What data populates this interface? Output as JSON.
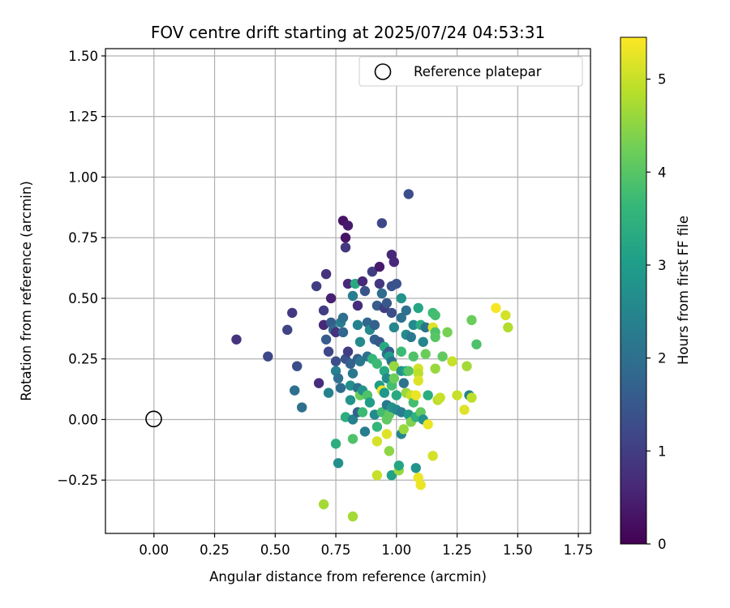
{
  "chart_data": {
    "type": "scatter",
    "title": "FOV centre drift starting at 2025/07/24 04:53:31",
    "xlabel": "Angular distance from reference (arcmin)",
    "ylabel": "Rotation from reference (arcmin)",
    "xlim": [
      -0.2,
      1.8
    ],
    "ylim": [
      -0.47,
      1.53
    ],
    "xticks": [
      "0.00",
      "0.25",
      "0.50",
      "0.75",
      "1.00",
      "1.25",
      "1.50",
      "1.75"
    ],
    "xtick_values": [
      0,
      0.25,
      0.5,
      0.75,
      1.0,
      1.25,
      1.5,
      1.75
    ],
    "yticks": [
      "−0.25",
      "0.00",
      "0.25",
      "0.50",
      "0.75",
      "1.00",
      "1.25",
      "1.50"
    ],
    "ytick_values": [
      -0.25,
      0,
      0.25,
      0.5,
      0.75,
      1.0,
      1.25,
      1.5
    ],
    "grid": true,
    "legend": {
      "position": "top-right",
      "label": "Reference platepar"
    },
    "reference_point": {
      "x": 0.0,
      "y": 0.0,
      "marker": "open-circle"
    },
    "colorbar": {
      "label": "Hours from first FF file",
      "colormap": "viridis",
      "range": [
        0,
        5.45
      ],
      "ticks": [
        "0",
        "1",
        "2",
        "3",
        "4",
        "5"
      ],
      "tick_values": [
        0,
        1,
        2,
        3,
        4,
        5
      ]
    },
    "colors": {
      "viridis": [
        "#440154",
        "#482878",
        "#3e4989",
        "#31688e",
        "#26828e",
        "#1f9e89",
        "#35b779",
        "#6ece58",
        "#b5de2b",
        "#fde725"
      ]
    },
    "points": [
      {
        "x": 0.34,
        "y": 0.33,
        "h": 0.8
      },
      {
        "x": 0.47,
        "y": 0.26,
        "h": 1.2
      },
      {
        "x": 0.55,
        "y": 0.37,
        "h": 1.1
      },
      {
        "x": 0.57,
        "y": 0.44,
        "h": 0.9
      },
      {
        "x": 0.59,
        "y": 0.22,
        "h": 1.3
      },
      {
        "x": 0.58,
        "y": 0.12,
        "h": 2.0
      },
      {
        "x": 0.61,
        "y": 0.05,
        "h": 2.0
      },
      {
        "x": 0.67,
        "y": 0.55,
        "h": 1.0
      },
      {
        "x": 0.68,
        "y": 0.15,
        "h": 0.7
      },
      {
        "x": 0.7,
        "y": 0.45,
        "h": 1.0
      },
      {
        "x": 0.71,
        "y": 0.6,
        "h": 0.8
      },
      {
        "x": 0.7,
        "y": 0.39,
        "h": 0.6
      },
      {
        "x": 0.71,
        "y": 0.33,
        "h": 1.6
      },
      {
        "x": 0.72,
        "y": 0.28,
        "h": 1.2
      },
      {
        "x": 0.73,
        "y": 0.5,
        "h": 0.5
      },
      {
        "x": 0.72,
        "y": 0.11,
        "h": 2.4
      },
      {
        "x": 0.73,
        "y": 0.4,
        "h": 1.6
      },
      {
        "x": 0.74,
        "y": 0.37,
        "h": 1.9
      },
      {
        "x": 0.75,
        "y": 0.36,
        "h": 0.8
      },
      {
        "x": 0.75,
        "y": 0.24,
        "h": 1.3
      },
      {
        "x": 0.75,
        "y": -0.1,
        "h": 3.4
      },
      {
        "x": 0.75,
        "y": 0.2,
        "h": 2.4
      },
      {
        "x": 0.76,
        "y": 0.17,
        "h": 2.0
      },
      {
        "x": 0.76,
        "y": -0.18,
        "h": 2.7
      },
      {
        "x": 0.77,
        "y": 0.4,
        "h": 2.3
      },
      {
        "x": 0.77,
        "y": 0.13,
        "h": 1.9
      },
      {
        "x": 0.78,
        "y": 0.82,
        "h": 0.3
      },
      {
        "x": 0.78,
        "y": 0.36,
        "h": 1.8
      },
      {
        "x": 0.78,
        "y": 0.42,
        "h": 2.0
      },
      {
        "x": 0.79,
        "y": 0.25,
        "h": 1.4
      },
      {
        "x": 0.79,
        "y": 0.01,
        "h": 3.4
      },
      {
        "x": 0.79,
        "y": 0.75,
        "h": 0.3
      },
      {
        "x": 0.79,
        "y": 0.71,
        "h": 0.9
      },
      {
        "x": 0.8,
        "y": 0.8,
        "h": 0.4
      },
      {
        "x": 0.8,
        "y": 0.56,
        "h": 0.6
      },
      {
        "x": 0.8,
        "y": 0.28,
        "h": 1.0
      },
      {
        "x": 0.81,
        "y": 0.08,
        "h": 2.8
      },
      {
        "x": 0.81,
        "y": 0.14,
        "h": 2.7
      },
      {
        "x": 0.81,
        "y": 0.23,
        "h": 1.7
      },
      {
        "x": 0.82,
        "y": 0.19,
        "h": 2.2
      },
      {
        "x": 0.82,
        "y": -0.08,
        "h": 3.9
      },
      {
        "x": 0.82,
        "y": 0.51,
        "h": 2.3
      },
      {
        "x": 0.82,
        "y": 0.0,
        "h": 2.4
      },
      {
        "x": 0.82,
        "y": -0.4,
        "h": 4.7
      },
      {
        "x": 0.83,
        "y": 0.56,
        "h": 3.3
      },
      {
        "x": 0.84,
        "y": 0.13,
        "h": 2.1
      },
      {
        "x": 0.84,
        "y": 0.47,
        "h": 0.7
      },
      {
        "x": 0.84,
        "y": 0.25,
        "h": 1.6
      },
      {
        "x": 0.84,
        "y": 0.03,
        "h": 1.7
      },
      {
        "x": 0.84,
        "y": 0.39,
        "h": 2.4
      },
      {
        "x": 0.85,
        "y": 0.32,
        "h": 2.6
      },
      {
        "x": 0.85,
        "y": 0.24,
        "h": 2.2
      },
      {
        "x": 0.85,
        "y": 0.1,
        "h": 4.2
      },
      {
        "x": 0.86,
        "y": 0.12,
        "h": 2.8
      },
      {
        "x": 0.86,
        "y": 0.03,
        "h": 3.7
      },
      {
        "x": 0.86,
        "y": 0.57,
        "h": 0.6
      },
      {
        "x": 0.87,
        "y": 0.53,
        "h": 1.4
      },
      {
        "x": 0.87,
        "y": -0.05,
        "h": 2.3
      },
      {
        "x": 0.88,
        "y": 0.4,
        "h": 1.8
      },
      {
        "x": 0.88,
        "y": 0.26,
        "h": 2.0
      },
      {
        "x": 0.88,
        "y": 0.1,
        "h": 3.9
      },
      {
        "x": 0.89,
        "y": 0.37,
        "h": 2.6
      },
      {
        "x": 0.89,
        "y": 0.07,
        "h": 3.0
      },
      {
        "x": 0.9,
        "y": 0.61,
        "h": 1.0
      },
      {
        "x": 0.9,
        "y": 0.25,
        "h": 3.6
      },
      {
        "x": 0.91,
        "y": 0.33,
        "h": 1.7
      },
      {
        "x": 0.91,
        "y": 0.39,
        "h": 1.7
      },
      {
        "x": 0.91,
        "y": 0.02,
        "h": 2.6
      },
      {
        "x": 0.92,
        "y": 0.47,
        "h": 1.6
      },
      {
        "x": 0.92,
        "y": 0.23,
        "h": 3.7
      },
      {
        "x": 0.92,
        "y": -0.09,
        "h": 5.1
      },
      {
        "x": 0.92,
        "y": -0.03,
        "h": 3.6
      },
      {
        "x": 0.92,
        "y": -0.23,
        "h": 5.0
      },
      {
        "x": 0.93,
        "y": 0.63,
        "h": 0.4
      },
      {
        "x": 0.93,
        "y": 0.32,
        "h": 1.5
      },
      {
        "x": 0.93,
        "y": 0.14,
        "h": 3.0
      },
      {
        "x": 0.93,
        "y": 0.56,
        "h": 0.9
      },
      {
        "x": 0.94,
        "y": 0.81,
        "h": 1.2
      },
      {
        "x": 0.94,
        "y": 0.52,
        "h": 1.9
      },
      {
        "x": 0.94,
        "y": 0.03,
        "h": 3.8
      },
      {
        "x": 0.94,
        "y": 0.12,
        "h": 5.3
      },
      {
        "x": 0.95,
        "y": 0.46,
        "h": 1.0
      },
      {
        "x": 0.95,
        "y": 0.3,
        "h": 3.3
      },
      {
        "x": 0.95,
        "y": 0.2,
        "h": 3.3
      },
      {
        "x": 0.95,
        "y": 0.11,
        "h": 2.9
      },
      {
        "x": 0.96,
        "y": 0.0,
        "h": 4.1
      },
      {
        "x": 0.96,
        "y": 0.48,
        "h": 1.5
      },
      {
        "x": 0.96,
        "y": 0.17,
        "h": 2.6
      },
      {
        "x": 0.96,
        "y": 0.27,
        "h": 2.1
      },
      {
        "x": 0.96,
        "y": 0.06,
        "h": 2.2
      },
      {
        "x": 0.96,
        "y": -0.06,
        "h": 5.2
      },
      {
        "x": 0.97,
        "y": 0.28,
        "h": 1.6
      },
      {
        "x": 0.97,
        "y": 0.26,
        "h": 3.0
      },
      {
        "x": 0.97,
        "y": -0.13,
        "h": 4.5
      },
      {
        "x": 0.97,
        "y": 0.02,
        "h": 4.1
      },
      {
        "x": 0.98,
        "y": 0.68,
        "h": 0.6
      },
      {
        "x": 0.98,
        "y": 0.55,
        "h": 1.4
      },
      {
        "x": 0.98,
        "y": 0.44,
        "h": 1.3
      },
      {
        "x": 0.98,
        "y": 0.24,
        "h": 2.1
      },
      {
        "x": 0.98,
        "y": 0.14,
        "h": 3.8
      },
      {
        "x": 0.98,
        "y": 0.05,
        "h": 2.8
      },
      {
        "x": 0.98,
        "y": -0.23,
        "h": 3.1
      },
      {
        "x": 0.99,
        "y": 0.65,
        "h": 0.6
      },
      {
        "x": 0.99,
        "y": 0.38,
        "h": 2.5
      },
      {
        "x": 0.99,
        "y": 0.22,
        "h": 4.6
      },
      {
        "x": 0.99,
        "y": 0.17,
        "h": 4.2
      },
      {
        "x": 1.0,
        "y": 0.56,
        "h": 1.4
      },
      {
        "x": 1.0,
        "y": 0.1,
        "h": 3.3
      },
      {
        "x": 1.0,
        "y": 0.04,
        "h": 2.6
      },
      {
        "x": 1.01,
        "y": -0.21,
        "h": 4.6
      },
      {
        "x": 1.01,
        "y": -0.19,
        "h": 3.2
      },
      {
        "x": 1.02,
        "y": 0.5,
        "h": 2.8
      },
      {
        "x": 1.02,
        "y": 0.28,
        "h": 3.7
      },
      {
        "x": 1.02,
        "y": 0.42,
        "h": 2.0
      },
      {
        "x": 1.02,
        "y": 0.2,
        "h": 2.8
      },
      {
        "x": 1.02,
        "y": 0.03,
        "h": 2.3
      },
      {
        "x": 1.02,
        "y": -0.06,
        "h": 2.5
      },
      {
        "x": 1.03,
        "y": 0.15,
        "h": 2.1
      },
      {
        "x": 1.03,
        "y": -0.04,
        "h": 4.6
      },
      {
        "x": 1.04,
        "y": 0.45,
        "h": 2.0
      },
      {
        "x": 1.04,
        "y": 0.2,
        "h": 3.1
      },
      {
        "x": 1.04,
        "y": 0.11,
        "h": 4.6
      },
      {
        "x": 1.04,
        "y": 0.35,
        "h": 2.6
      },
      {
        "x": 1.05,
        "y": 0.02,
        "h": 2.9
      },
      {
        "x": 1.05,
        "y": 0.93,
        "h": 1.3
      },
      {
        "x": 1.05,
        "y": 0.2,
        "h": 4.0
      },
      {
        "x": 1.06,
        "y": 0.1,
        "h": 5.0
      },
      {
        "x": 1.06,
        "y": 0.34,
        "h": 2.2
      },
      {
        "x": 1.06,
        "y": -0.01,
        "h": 4.4
      },
      {
        "x": 1.07,
        "y": 0.26,
        "h": 3.9
      },
      {
        "x": 1.07,
        "y": 0.39,
        "h": 2.6
      },
      {
        "x": 1.07,
        "y": 0.07,
        "h": 3.8
      },
      {
        "x": 1.08,
        "y": 0.01,
        "h": 3.5
      },
      {
        "x": 1.08,
        "y": -0.2,
        "h": 2.8
      },
      {
        "x": 1.08,
        "y": 0.1,
        "h": 5.3
      },
      {
        "x": 1.09,
        "y": 0.46,
        "h": 3.2
      },
      {
        "x": 1.09,
        "y": 0.21,
        "h": 5.1
      },
      {
        "x": 1.09,
        "y": 0.19,
        "h": 4.9
      },
      {
        "x": 1.09,
        "y": 0.16,
        "h": 5.2
      },
      {
        "x": 1.09,
        "y": -0.24,
        "h": 5.3
      },
      {
        "x": 1.1,
        "y": 0.39,
        "h": 3.4
      },
      {
        "x": 1.1,
        "y": -0.27,
        "h": 5.3
      },
      {
        "x": 1.1,
        "y": 0.03,
        "h": 4.1
      },
      {
        "x": 1.11,
        "y": 0.32,
        "h": 2.5
      },
      {
        "x": 1.11,
        "y": 0.0,
        "h": 2.8
      },
      {
        "x": 1.12,
        "y": 0.38,
        "h": 2.1
      },
      {
        "x": 1.12,
        "y": 0.27,
        "h": 4.2
      },
      {
        "x": 1.13,
        "y": 0.1,
        "h": 3.4
      },
      {
        "x": 1.13,
        "y": -0.02,
        "h": 5.3
      },
      {
        "x": 1.15,
        "y": 0.38,
        "h": 5.2
      },
      {
        "x": 1.15,
        "y": 0.44,
        "h": 3.7
      },
      {
        "x": 1.15,
        "y": -0.15,
        "h": 5.1
      },
      {
        "x": 1.16,
        "y": 0.43,
        "h": 3.8
      },
      {
        "x": 1.16,
        "y": 0.21,
        "h": 4.6
      },
      {
        "x": 1.16,
        "y": 0.36,
        "h": 3.9
      },
      {
        "x": 1.16,
        "y": 0.34,
        "h": 4.0
      },
      {
        "x": 1.17,
        "y": 0.08,
        "h": 4.9
      },
      {
        "x": 1.18,
        "y": 0.09,
        "h": 5.0
      },
      {
        "x": 1.19,
        "y": 0.26,
        "h": 4.1
      },
      {
        "x": 1.21,
        "y": 0.36,
        "h": 4.3
      },
      {
        "x": 1.23,
        "y": 0.24,
        "h": 5.0
      },
      {
        "x": 1.25,
        "y": 0.1,
        "h": 5.0
      },
      {
        "x": 1.28,
        "y": 0.04,
        "h": 5.2
      },
      {
        "x": 1.29,
        "y": 0.22,
        "h": 4.7
      },
      {
        "x": 1.3,
        "y": 0.1,
        "h": 2.4
      },
      {
        "x": 1.31,
        "y": 0.09,
        "h": 4.9
      },
      {
        "x": 1.31,
        "y": 0.41,
        "h": 4.2
      },
      {
        "x": 1.33,
        "y": 0.31,
        "h": 3.9
      },
      {
        "x": 1.41,
        "y": 0.46,
        "h": 5.4
      },
      {
        "x": 1.45,
        "y": 0.43,
        "h": 5.1
      },
      {
        "x": 1.46,
        "y": 0.38,
        "h": 4.8
      },
      {
        "x": 0.7,
        "y": -0.35,
        "h": 4.7
      }
    ]
  }
}
